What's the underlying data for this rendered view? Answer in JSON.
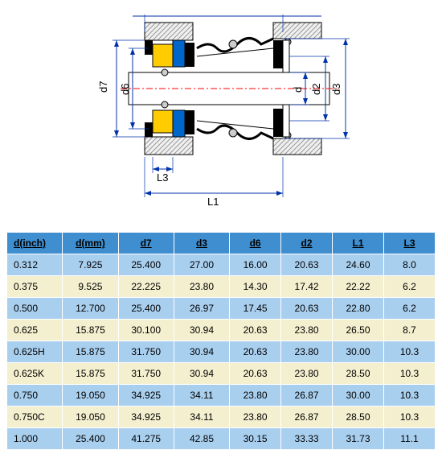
{
  "diagram": {
    "labels": {
      "d7": "d7",
      "d6": "d6",
      "d": "d",
      "d2": "d2",
      "d3": "d3",
      "L3": "L3",
      "L1": "L1"
    },
    "colors": {
      "blue_part": "#0066cc",
      "yellow_part": "#ffcc00",
      "black_part": "#000000",
      "gray_hatch": "#cccccc",
      "centerline": "#ff0000",
      "dim_blue": "#0033aa"
    }
  },
  "table": {
    "header_bg": "#3e8ed0",
    "row_blue": "#a9cfef",
    "row_ivory": "#f4efcf",
    "border": "#ffffff",
    "columns": [
      "d(inch)",
      "d(mm)",
      "d7",
      "d3",
      "d6",
      "d2",
      "L1",
      "L3"
    ],
    "rows": [
      {
        "class": "row-blue",
        "cells": [
          "0.312",
          "7.925",
          "25.400",
          "27.00",
          "16.00",
          "20.63",
          "24.60",
          "8.0"
        ]
      },
      {
        "class": "row-ivory",
        "cells": [
          "0.375",
          "9.525",
          "22.225",
          "23.80",
          "14.30",
          "17.42",
          "22.22",
          "6.2"
        ]
      },
      {
        "class": "row-blue",
        "cells": [
          "0.500",
          "12.700",
          "25.400",
          "26.97",
          "17.45",
          "20.63",
          "22.80",
          "6.2"
        ]
      },
      {
        "class": "row-ivory",
        "cells": [
          "0.625",
          "15.875",
          "30.100",
          "30.94",
          "20.63",
          "23.80",
          "26.50",
          "8.7"
        ]
      },
      {
        "class": "row-blue",
        "cells": [
          "0.625H",
          "15.875",
          "31.750",
          "30.94",
          "20.63",
          "23.80",
          "30.00",
          "10.3"
        ]
      },
      {
        "class": "row-ivory",
        "cells": [
          "0.625K",
          "15.875",
          "31.750",
          "30.94",
          "20.63",
          "23.80",
          "28.50",
          "10.3"
        ]
      },
      {
        "class": "row-blue",
        "cells": [
          "0.750",
          "19.050",
          "34.925",
          "34.11",
          "23.80",
          "26.87",
          "30.00",
          "10.3"
        ]
      },
      {
        "class": "row-ivory",
        "cells": [
          "0.750C",
          "19.050",
          "34.925",
          "34.11",
          "23.80",
          "26.87",
          "28.50",
          "10.3"
        ]
      },
      {
        "class": "row-blue",
        "cells": [
          "1.000",
          "25.400",
          "41.275",
          "42.85",
          "30.15",
          "33.33",
          "31.73",
          "11.1"
        ]
      }
    ]
  }
}
